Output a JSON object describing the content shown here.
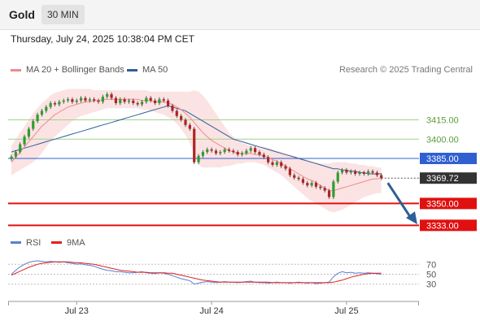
{
  "header": {
    "symbol": "Gold",
    "timeframe": "30 MIN"
  },
  "datetime": "Thursday, July 24, 2025 10:38:04 PM CET",
  "legend": {
    "items": [
      {
        "label": "MA 20 + Bollinger Bands",
        "color": "#f08a8a"
      },
      {
        "label": "MA 50",
        "color": "#2f5e99"
      }
    ],
    "research": "Research © 2025 Trading Central"
  },
  "rsi_legend": [
    {
      "label": "RSI",
      "color": "#5b7fd1"
    },
    {
      "label": "9MA",
      "color": "#e02020"
    }
  ],
  "colors": {
    "up": "#2e9e2e",
    "down": "#b22222",
    "level_green": "#9fd38a",
    "level_blue": "#2f5fd1",
    "level_red": "#e01010",
    "arrow": "#2f5e99"
  },
  "chart_data": {
    "type": "candlestick",
    "price_range": [
      3325,
      3445
    ],
    "levels": [
      {
        "value": 3415.0,
        "label": "3415.00",
        "style": "green"
      },
      {
        "value": 3400.0,
        "label": "3400.00",
        "style": "green"
      },
      {
        "value": 3385.0,
        "label": "3385.00",
        "style": "blue"
      },
      {
        "value": 3350.0,
        "label": "3350.00",
        "style": "red"
      },
      {
        "value": 3333.0,
        "label": "3333.00",
        "style": "red"
      }
    ],
    "last_price": {
      "value": 3369.72,
      "label": "3369.72"
    },
    "x_ticks": [
      {
        "index": 15,
        "label": "Jul 23"
      },
      {
        "index": 46,
        "label": "Jul 24"
      },
      {
        "index": 77,
        "label": "Jul 25"
      }
    ],
    "rsi_ticks": [
      {
        "value": 70,
        "label": "70"
      },
      {
        "value": 50,
        "label": "50"
      },
      {
        "value": 30,
        "label": "30"
      }
    ],
    "close": [
      3386.5,
      3390,
      3396,
      3402,
      3408,
      3414,
      3419,
      3422,
      3425,
      3428,
      3427,
      3429,
      3430,
      3431,
      3429,
      3430,
      3432,
      3430,
      3431,
      3430,
      3429,
      3433,
      3435,
      3432,
      3428,
      3431,
      3429,
      3430,
      3428,
      3427,
      3429,
      3432,
      3430,
      3428,
      3431,
      3430,
      3426,
      3422,
      3418,
      3415,
      3411,
      3408,
      3382,
      3387,
      3390,
      3392,
      3391,
      3389,
      3390,
      3392,
      3391,
      3390,
      3388,
      3389,
      3391,
      3393,
      3390,
      3388,
      3386,
      3382,
      3380,
      3382,
      3379,
      3377,
      3372,
      3370,
      3369,
      3366,
      3364,
      3366,
      3363,
      3362,
      3360,
      3355,
      3367,
      3374,
      3376,
      3374,
      3375,
      3373,
      3374,
      3373,
      3375,
      3374,
      3372,
      3369.72
    ],
    "ma20": [
      3382,
      3386,
      3390,
      3394,
      3398,
      3402,
      3406,
      3410,
      3413,
      3416,
      3419,
      3421,
      3423,
      3425,
      3426,
      3427,
      3428,
      3429,
      3429,
      3430,
      3430,
      3431,
      3431,
      3431,
      3431,
      3431,
      3431,
      3431,
      3431,
      3431,
      3430,
      3430,
      3430,
      3429,
      3429,
      3429,
      3428,
      3427,
      3425,
      3423,
      3420,
      3417,
      3413,
      3409,
      3405,
      3402,
      3399,
      3397,
      3395,
      3393,
      3391,
      3390,
      3389,
      3389,
      3389,
      3389,
      3388,
      3388,
      3387,
      3386,
      3384,
      3383,
      3381,
      3379,
      3377,
      3375,
      3373,
      3371,
      3369,
      3368,
      3366,
      3364,
      3362,
      3360,
      3360,
      3361,
      3362,
      3363,
      3364,
      3365,
      3366,
      3367,
      3368,
      3369,
      3369,
      3370
    ],
    "bb_upper": [
      3395,
      3400,
      3405,
      3410,
      3415,
      3420,
      3424,
      3428,
      3431,
      3434,
      3436,
      3437,
      3438,
      3439,
      3439,
      3439,
      3439,
      3439,
      3439,
      3438,
      3438,
      3438,
      3438,
      3438,
      3438,
      3438,
      3438,
      3438,
      3438,
      3438,
      3438,
      3438,
      3437,
      3437,
      3437,
      3437,
      3437,
      3437,
      3437,
      3437,
      3437,
      3437,
      3438,
      3437,
      3434,
      3430,
      3425,
      3420,
      3415,
      3410,
      3405,
      3402,
      3399,
      3397,
      3396,
      3395,
      3395,
      3394,
      3394,
      3393,
      3392,
      3391,
      3390,
      3389,
      3388,
      3387,
      3386,
      3385,
      3384,
      3383,
      3382,
      3381,
      3381,
      3381,
      3382,
      3382,
      3382,
      3382,
      3381,
      3381,
      3380,
      3380,
      3379,
      3379,
      3378,
      3378
    ],
    "bb_lower": [
      3372,
      3374,
      3376,
      3378,
      3380,
      3382,
      3385,
      3389,
      3394,
      3398,
      3402,
      3405,
      3408,
      3411,
      3414,
      3416,
      3418,
      3419,
      3420,
      3421,
      3422,
      3423,
      3424,
      3424,
      3424,
      3424,
      3424,
      3424,
      3424,
      3424,
      3423,
      3423,
      3422,
      3421,
      3420,
      3419,
      3417,
      3415,
      3412,
      3408,
      3403,
      3397,
      3388,
      3380,
      3378,
      3378,
      3378,
      3378,
      3378,
      3379,
      3379,
      3380,
      3381,
      3381,
      3382,
      3382,
      3382,
      3381,
      3380,
      3378,
      3376,
      3374,
      3372,
      3369,
      3366,
      3363,
      3360,
      3357,
      3354,
      3352,
      3350,
      3348,
      3346,
      3344,
      3343,
      3344,
      3345,
      3347,
      3349,
      3351,
      3353,
      3355,
      3356,
      3357,
      3358,
      3358
    ],
    "ma50": [
      3390,
      3391,
      3392,
      3393,
      3394,
      3395,
      3396,
      3397,
      3398,
      3399,
      3400,
      3401,
      3402,
      3403,
      3404,
      3405,
      3406,
      3407,
      3408,
      3409,
      3410,
      3411,
      3412,
      3413,
      3414,
      3415,
      3416,
      3417,
      3418,
      3419,
      3420,
      3421,
      3422,
      3423,
      3424,
      3425,
      3426,
      3425,
      3424,
      3423,
      3422,
      3420,
      3418,
      3416,
      3414,
      3412,
      3410,
      3408,
      3406,
      3404,
      3402,
      3400,
      3399,
      3398,
      3397,
      3396,
      3395,
      3394,
      3393,
      3392,
      3391,
      3390,
      3389,
      3388,
      3387,
      3386,
      3385,
      3384,
      3383,
      3382,
      3381,
      3380,
      3379,
      3378,
      3377,
      3377,
      3376,
      3376,
      3375,
      3375,
      3374,
      3374,
      3373,
      3373,
      3373,
      3373
    ],
    "rsi": [
      50,
      58,
      65,
      70,
      74,
      76,
      77,
      76,
      75,
      76,
      75,
      74,
      75,
      73,
      72,
      70,
      71,
      69,
      68,
      66,
      63,
      60,
      58,
      57,
      55,
      55,
      54,
      53,
      53,
      54,
      55,
      53,
      52,
      51,
      53,
      52,
      50,
      47,
      44,
      41,
      39,
      37,
      30,
      32,
      34,
      35,
      34,
      33,
      34,
      35,
      34,
      34,
      33,
      34,
      35,
      36,
      34,
      33,
      33,
      32,
      33,
      34,
      33,
      33,
      32,
      33,
      34,
      33,
      32,
      33,
      31,
      32,
      33,
      34,
      45,
      52,
      55,
      53,
      54,
      52,
      53,
      52,
      53,
      52,
      51,
      50
    ],
    "rsi_ma": [
      48,
      52,
      56,
      60,
      64,
      67,
      70,
      72,
      73,
      74,
      75,
      75,
      75,
      75,
      74,
      73,
      73,
      72,
      71,
      70,
      68,
      66,
      64,
      62,
      60,
      58,
      57,
      56,
      55,
      54,
      54,
      54,
      53,
      53,
      53,
      53,
      52,
      52,
      50,
      48,
      46,
      44,
      42,
      40,
      38,
      37,
      36,
      35,
      34,
      34,
      34,
      34,
      34,
      34,
      34,
      34,
      34,
      34,
      34,
      34,
      33,
      33,
      33,
      33,
      33,
      33,
      33,
      33,
      33,
      33,
      33,
      33,
      33,
      33,
      34,
      36,
      38,
      41,
      44,
      46,
      48,
      50,
      51,
      52,
      52,
      52
    ]
  }
}
